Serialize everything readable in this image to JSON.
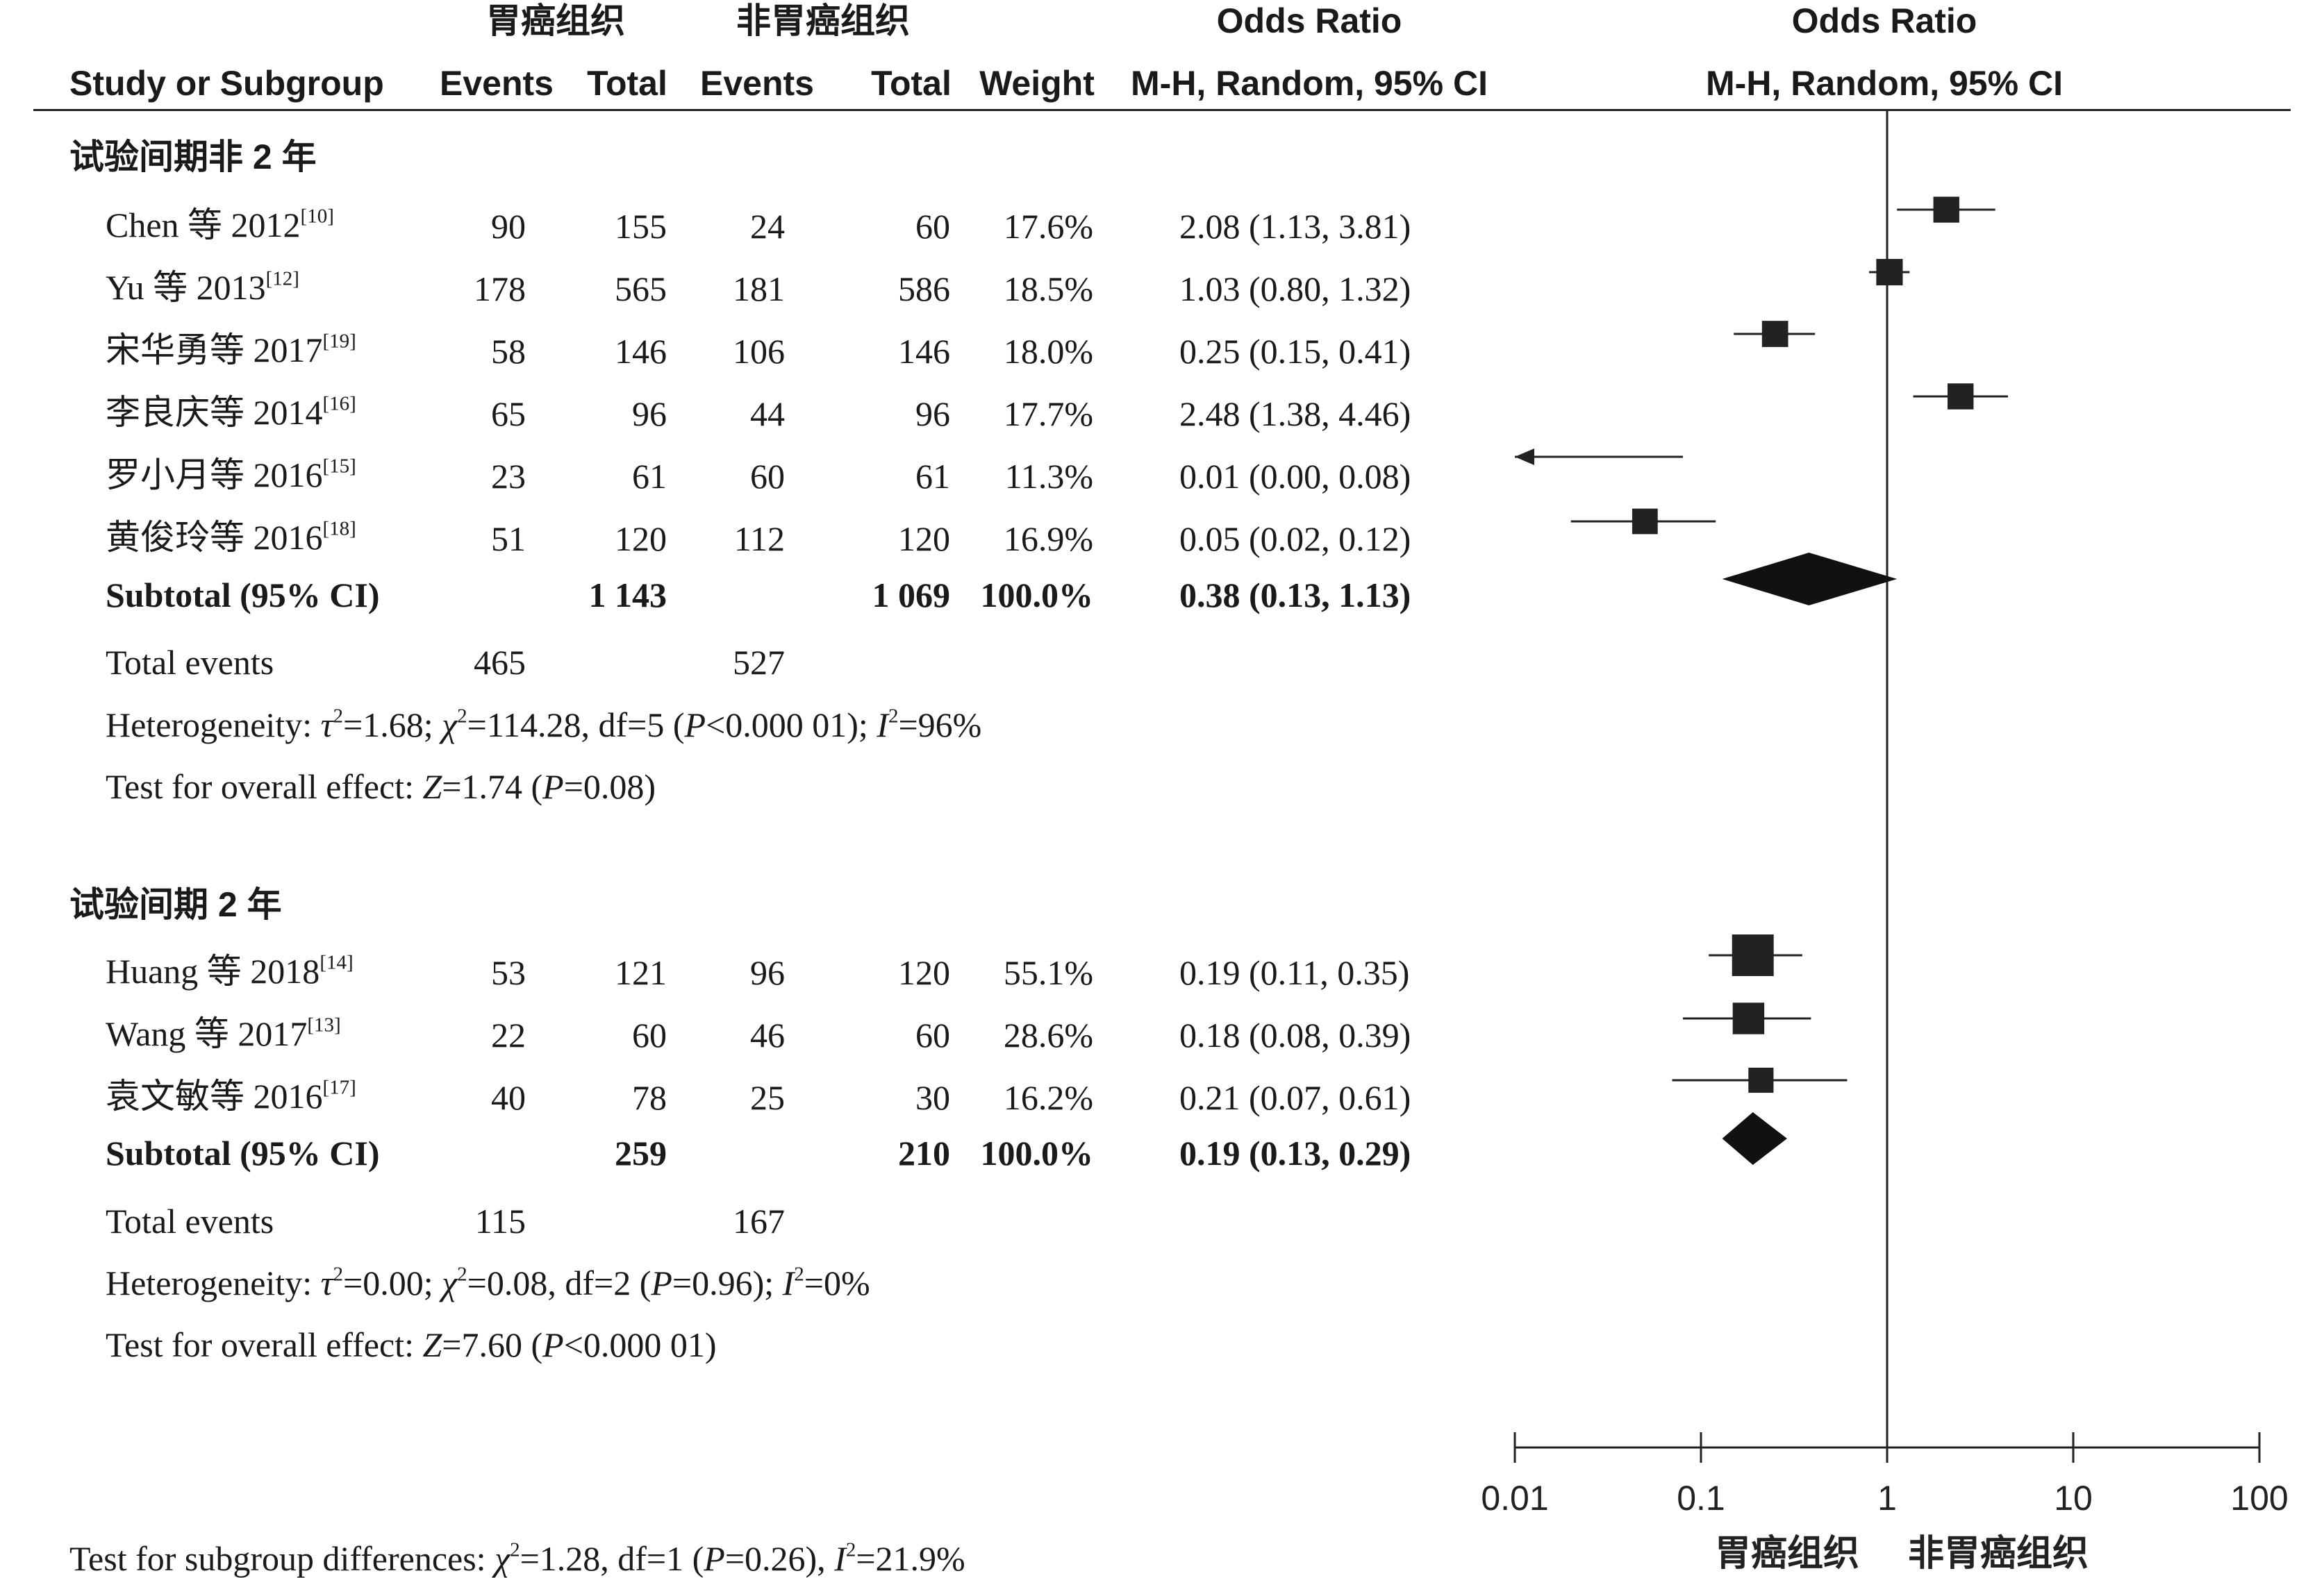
{
  "header": {
    "group_exp": "胃癌组织",
    "group_ctrl": "非胃癌组织",
    "study_col": "Study or Subgroup",
    "events_col": "Events",
    "total_col": "Total",
    "weight_col": "Weight",
    "or_title": "Odds Ratio",
    "or_subtitle": "M-H, Random, 95% CI"
  },
  "subgroups": [
    {
      "title": "试验间期非 2 年",
      "studies": [
        {
          "name": "Chen 等 2012",
          "ref": "[10]",
          "e_events": "90",
          "e_total": "155",
          "c_events": "24",
          "c_total": "60",
          "weight": "17.6%",
          "ci_text": "2.08 (1.13, 3.81)"
        },
        {
          "name": "Yu 等 2013",
          "ref": "[12]",
          "e_events": "178",
          "e_total": "565",
          "c_events": "181",
          "c_total": "586",
          "weight": "18.5%",
          "ci_text": "1.03 (0.80, 1.32)"
        },
        {
          "name": "宋华勇等 2017",
          "ref": "[19]",
          "e_events": "58",
          "e_total": "146",
          "c_events": "106",
          "c_total": "146",
          "weight": "18.0%",
          "ci_text": "0.25 (0.15, 0.41)"
        },
        {
          "name": "李良庆等 2014",
          "ref": "[16]",
          "e_events": "65",
          "e_total": "96",
          "c_events": "44",
          "c_total": "96",
          "weight": "17.7%",
          "ci_text": "2.48 (1.38, 4.46)"
        },
        {
          "name": "罗小月等 2016",
          "ref": "[15]",
          "e_events": "23",
          "e_total": "61",
          "c_events": "60",
          "c_total": "61",
          "weight": "11.3%",
          "ci_text": "0.01 (0.00, 0.08)"
        },
        {
          "name": "黄俊玲等 2016",
          "ref": "[18]",
          "e_events": "51",
          "e_total": "120",
          "c_events": "112",
          "c_total": "120",
          "weight": "16.9%",
          "ci_text": "0.05 (0.02, 0.12)"
        }
      ],
      "subtotal": {
        "label": "Subtotal (95% CI)",
        "e_total": "1 143",
        "c_total": "1 069",
        "weight": "100.0%",
        "ci_text": "0.38 (0.13, 1.13)"
      },
      "total_events": {
        "label": "Total events",
        "e": "465",
        "c": "527"
      },
      "heterogeneity": {
        "prefix": "Heterogeneity: ",
        "tau2": "1.68",
        "chi2": "114.28",
        "df": "5",
        "p": "<0.000 01",
        "i2": "96%"
      },
      "overall": {
        "prefix": "Test for overall effect: ",
        "z": "1.74",
        "p": "0.08"
      }
    },
    {
      "title": "试验间期 2 年",
      "studies": [
        {
          "name": "Huang 等 2018",
          "ref": "[14]",
          "e_events": "53",
          "e_total": "121",
          "c_events": "96",
          "c_total": "120",
          "weight": "55.1%",
          "ci_text": "0.19 (0.11, 0.35)"
        },
        {
          "name": "Wang 等 2017",
          "ref": "[13]",
          "e_events": "22",
          "e_total": "60",
          "c_events": "46",
          "c_total": "60",
          "weight": "28.6%",
          "ci_text": "0.18 (0.08, 0.39)"
        },
        {
          "name": "袁文敏等 2016",
          "ref": "[17]",
          "e_events": "40",
          "e_total": "78",
          "c_events": "25",
          "c_total": "30",
          "weight": "16.2%",
          "ci_text": "0.21 (0.07, 0.61)"
        }
      ],
      "subtotal": {
        "label": "Subtotal (95% CI)",
        "e_total": "259",
        "c_total": "210",
        "weight": "100.0%",
        "ci_text": "0.19 (0.13, 0.29)"
      },
      "total_events": {
        "label": "Total events",
        "e": "115",
        "c": "167"
      },
      "heterogeneity": {
        "prefix": "Heterogeneity: ",
        "tau2": "0.00",
        "chi2": "0.08",
        "df": "2",
        "p": "=0.96",
        "i2": "0%"
      },
      "overall": {
        "prefix": "Test for overall effect: ",
        "z": "7.60",
        "p": "<0.000 01"
      }
    }
  ],
  "subgroup_diff": {
    "prefix": "Test for subgroup differences: ",
    "chi2": "1.28",
    "df": "1",
    "p": "0.26",
    "i2": "21.9%"
  },
  "chart_data": {
    "type": "forest",
    "x_scale": "log",
    "xlim": [
      0.01,
      100
    ],
    "x_ticks": [
      0.01,
      0.1,
      1,
      10,
      100
    ],
    "x_tick_labels": [
      "0.01",
      "0.1",
      "1",
      "10",
      "100"
    ],
    "reference_line": 1,
    "favours_left": "胃癌组织",
    "favours_right": "非胃癌组织",
    "subgroups": [
      {
        "studies": [
          {
            "or": 2.08,
            "lo": 1.13,
            "hi": 3.81,
            "weight": 17.6
          },
          {
            "or": 1.03,
            "lo": 0.8,
            "hi": 1.32,
            "weight": 18.5
          },
          {
            "or": 0.25,
            "lo": 0.15,
            "hi": 0.41,
            "weight": 18.0
          },
          {
            "or": 2.48,
            "lo": 1.38,
            "hi": 4.46,
            "weight": 17.7
          },
          {
            "or": 0.01,
            "lo": 0.0,
            "hi": 0.08,
            "weight": 11.3
          },
          {
            "or": 0.05,
            "lo": 0.02,
            "hi": 0.12,
            "weight": 16.9
          }
        ],
        "subtotal": {
          "or": 0.38,
          "lo": 0.13,
          "hi": 1.13
        }
      },
      {
        "studies": [
          {
            "or": 0.19,
            "lo": 0.11,
            "hi": 0.35,
            "weight": 55.1
          },
          {
            "or": 0.18,
            "lo": 0.08,
            "hi": 0.39,
            "weight": 28.6
          },
          {
            "or": 0.21,
            "lo": 0.07,
            "hi": 0.61,
            "weight": 16.2
          }
        ],
        "subtotal": {
          "or": 0.19,
          "lo": 0.13,
          "hi": 0.29
        }
      }
    ]
  }
}
